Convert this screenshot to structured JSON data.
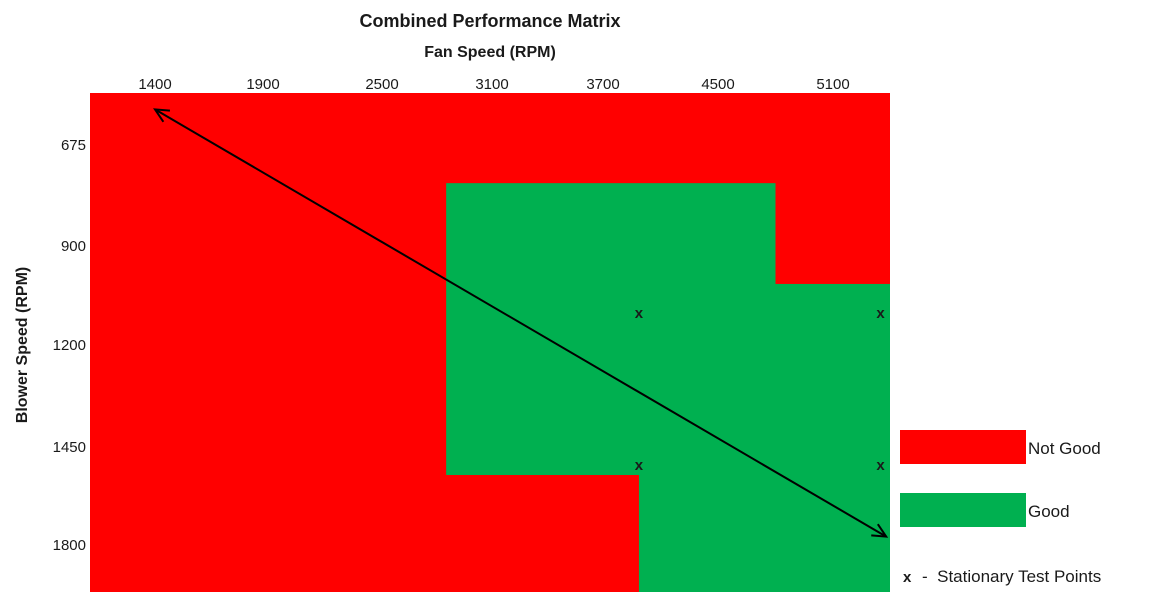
{
  "chart_data": {
    "type": "heatmap",
    "title": "Combined Performance Matrix",
    "xlabel": "Fan Speed (RPM)",
    "ylabel": "Blower Speed (RPM)",
    "x_ticks": [
      "1400",
      "1900",
      "2500",
      "3100",
      "3700",
      "4500",
      "5100"
    ],
    "y_ticks": [
      "675",
      "900",
      "1200",
      "1450",
      "1800"
    ],
    "regions": [
      {
        "status": "Not Good",
        "x_range": [
          1200,
          5400
        ],
        "y_range": [
          580,
          1950
        ]
      },
      {
        "status": "Good",
        "x_range": [
          2850,
          4800
        ],
        "y_range": [
          760,
          1550
        ]
      },
      {
        "status": "Good",
        "x_range": [
          4800,
          5400
        ],
        "y_range": [
          1015,
          1550
        ]
      },
      {
        "status": "Good",
        "x_range": [
          3950,
          5400
        ],
        "y_range": [
          1550,
          1950
        ]
      }
    ],
    "test_points": [
      {
        "x": 3950,
        "y": 1100
      },
      {
        "x": 5350,
        "y": 1100
      },
      {
        "x": 3950,
        "y": 1510
      },
      {
        "x": 5350,
        "y": 1510
      }
    ],
    "test_point_marker": "x",
    "arrow": {
      "from": {
        "x": 1400,
        "y": 610
      },
      "to": {
        "x": 5380,
        "y": 1770
      }
    },
    "legend": {
      "position": "bottom-right",
      "items": [
        {
          "label": "Not Good",
          "color": "#ff0000"
        },
        {
          "label": "Good",
          "color": "#00b050"
        }
      ],
      "marker_label": "x",
      "marker_text": "-  Stationary Test Points"
    },
    "grid": false
  }
}
